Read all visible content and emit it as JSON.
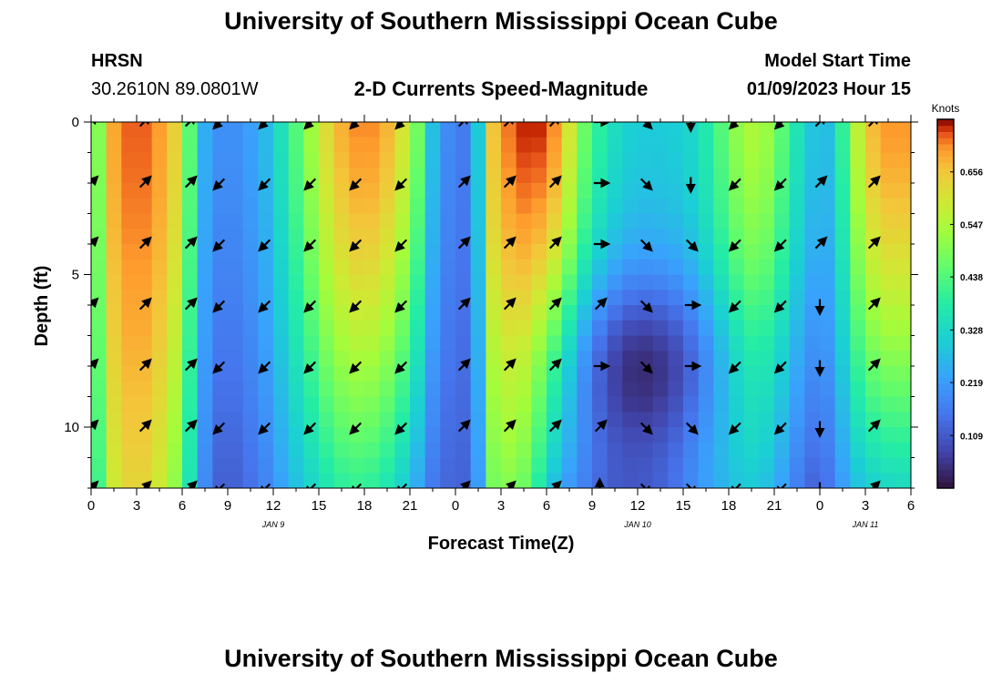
{
  "header": {
    "title": "University of Southern Mississippi Ocean Cube",
    "station": "HRSN",
    "coords": "30.2610N  89.0801W",
    "subtitle": "2-D Currents Speed-Magnitude",
    "model_label": "Model Start Time",
    "model_time": "01/09/2023 Hour 15"
  },
  "footer": {
    "title": "University of Southern Mississippi Ocean Cube"
  },
  "colors": {
    "accent": "#000000"
  },
  "chart_data": {
    "type": "heatmap",
    "title": "2-D Currents Speed-Magnitude",
    "xlabel": "Forecast Time(Z)",
    "ylabel": "Depth (ft)",
    "x_unit": "hours since 00Z JAN 9",
    "xlim": [
      0,
      54
    ],
    "ylim": [
      0,
      12
    ],
    "x_ticks": [
      {
        "x": 0,
        "label": "0"
      },
      {
        "x": 3,
        "label": "3"
      },
      {
        "x": 6,
        "label": "6"
      },
      {
        "x": 9,
        "label": "9"
      },
      {
        "x": 12,
        "label": "12"
      },
      {
        "x": 15,
        "label": "15"
      },
      {
        "x": 18,
        "label": "18"
      },
      {
        "x": 21,
        "label": "21"
      },
      {
        "x": 24,
        "label": "0"
      },
      {
        "x": 27,
        "label": "3"
      },
      {
        "x": 30,
        "label": "6"
      },
      {
        "x": 33,
        "label": "9"
      },
      {
        "x": 36,
        "label": "12"
      },
      {
        "x": 39,
        "label": "15"
      },
      {
        "x": 42,
        "label": "18"
      },
      {
        "x": 45,
        "label": "21"
      },
      {
        "x": 48,
        "label": "0"
      },
      {
        "x": 51,
        "label": "3"
      },
      {
        "x": 54,
        "label": "6"
      }
    ],
    "day_labels": [
      {
        "x": 12,
        "label": "JAN 9"
      },
      {
        "x": 36,
        "label": "JAN 10"
      },
      {
        "x": 51,
        "label": "JAN 11"
      }
    ],
    "y_ticks": [
      {
        "y": 0,
        "label": "0"
      },
      {
        "y": 5,
        "label": "5"
      },
      {
        "y": 10,
        "label": "10"
      }
    ],
    "colorbar": {
      "label": "Knots",
      "min": 0.0,
      "max": 0.765,
      "ticks": [
        {
          "v": 0.109,
          "label": "0.109"
        },
        {
          "v": 0.219,
          "label": "0.219"
        },
        {
          "v": 0.328,
          "label": "0.328"
        },
        {
          "v": 0.438,
          "label": "0.438"
        },
        {
          "v": 0.547,
          "label": "0.547"
        },
        {
          "v": 0.656,
          "label": "0.656"
        }
      ]
    },
    "time_profile": {
      "hours": [
        0,
        0.5,
        1,
        2,
        3,
        4,
        5,
        6,
        6.5,
        7,
        7.5,
        8.5,
        9.5,
        11,
        12,
        13,
        14,
        15,
        16,
        17,
        18,
        19,
        20,
        21,
        22,
        22.5,
        23,
        24,
        25,
        25.5,
        26,
        27,
        28,
        29,
        30,
        31,
        32,
        33,
        34,
        35,
        36,
        37,
        38,
        39,
        40,
        41,
        42,
        43,
        44,
        45,
        46,
        47,
        48,
        49,
        50,
        51,
        52,
        53,
        54
      ],
      "surface": [
        0.34,
        0.5,
        0.66,
        0.72,
        0.74,
        0.72,
        0.68,
        0.6,
        0.45,
        0.33,
        0.25,
        0.2,
        0.2,
        0.24,
        0.3,
        0.4,
        0.48,
        0.58,
        0.66,
        0.7,
        0.72,
        0.7,
        0.65,
        0.56,
        0.4,
        0.28,
        0.22,
        0.16,
        0.17,
        0.3,
        0.62,
        0.7,
        0.74,
        0.76,
        0.74,
        0.68,
        0.52,
        0.42,
        0.36,
        0.32,
        0.3,
        0.3,
        0.3,
        0.31,
        0.34,
        0.4,
        0.48,
        0.54,
        0.55,
        0.5,
        0.4,
        0.32,
        0.26,
        0.3,
        0.5,
        0.64,
        0.7,
        0.71,
        0.7
      ],
      "bottom": [
        0.3,
        0.42,
        0.56,
        0.62,
        0.64,
        0.62,
        0.56,
        0.46,
        0.36,
        0.26,
        0.19,
        0.12,
        0.12,
        0.16,
        0.2,
        0.26,
        0.3,
        0.34,
        0.38,
        0.4,
        0.4,
        0.38,
        0.34,
        0.28,
        0.2,
        0.16,
        0.14,
        0.12,
        0.13,
        0.22,
        0.46,
        0.5,
        0.5,
        0.44,
        0.32,
        0.24,
        0.2,
        0.16,
        0.13,
        0.12,
        0.12,
        0.13,
        0.15,
        0.18,
        0.22,
        0.25,
        0.28,
        0.3,
        0.3,
        0.26,
        0.2,
        0.14,
        0.12,
        0.18,
        0.26,
        0.3,
        0.32,
        0.33,
        0.33
      ]
    },
    "midwater_minimum": {
      "x_center": 36.5,
      "x_width": 6,
      "y_center": 7.8,
      "y_width": 2.8,
      "depth": 0.16
    },
    "current_vectors": {
      "hours": [
        0,
        3.5,
        6.5,
        8.5,
        11.5,
        14.5,
        17.5,
        20.5,
        24.5,
        27.5,
        30.5,
        33.5,
        36.5,
        39.5,
        42.5,
        45.5,
        48,
        51.5
      ],
      "depths": [
        0,
        2,
        4,
        6,
        8,
        10,
        12
      ],
      "dir_deg": [
        [
          45,
          45,
          45,
          225,
          225,
          225,
          225,
          225,
          45,
          45,
          45,
          90,
          135,
          180,
          225,
          225,
          45,
          45
        ],
        [
          45,
          45,
          45,
          225,
          225,
          225,
          225,
          225,
          45,
          45,
          45,
          90,
          135,
          180,
          225,
          225,
          45,
          45
        ],
        [
          45,
          45,
          45,
          225,
          225,
          225,
          225,
          225,
          45,
          45,
          45,
          90,
          135,
          135,
          225,
          225,
          45,
          45
        ],
        [
          45,
          45,
          45,
          225,
          225,
          225,
          225,
          225,
          45,
          45,
          45,
          45,
          135,
          90,
          225,
          225,
          180,
          45
        ],
        [
          45,
          45,
          45,
          225,
          225,
          225,
          225,
          225,
          45,
          45,
          45,
          90,
          135,
          90,
          225,
          225,
          180,
          45
        ],
        [
          45,
          45,
          45,
          225,
          225,
          225,
          225,
          225,
          45,
          45,
          45,
          45,
          135,
          135,
          225,
          225,
          180,
          45
        ],
        [
          45,
          45,
          45,
          225,
          225,
          225,
          225,
          225,
          45,
          45,
          45,
          0,
          135,
          135,
          225,
          225,
          180,
          45
        ]
      ]
    }
  }
}
